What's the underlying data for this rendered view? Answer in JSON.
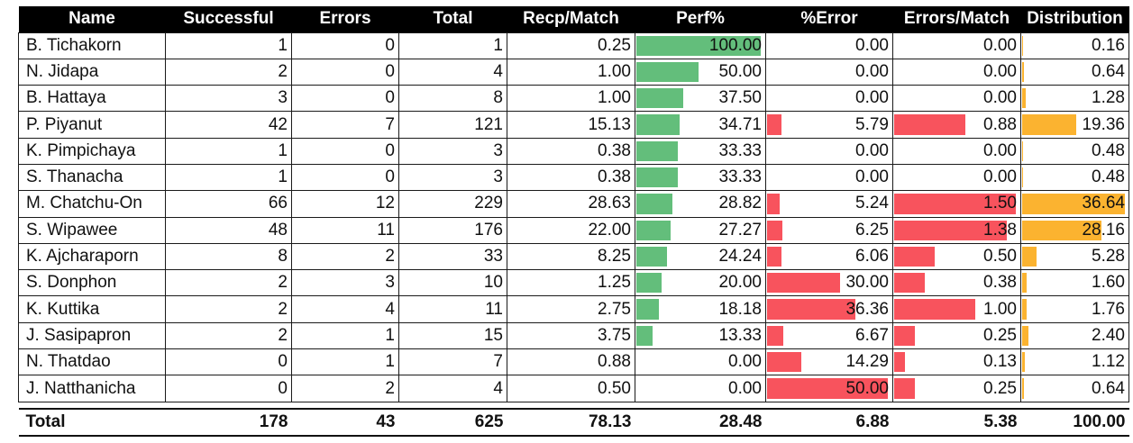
{
  "table": {
    "headers": [
      "Name",
      "Successful",
      "Errors",
      "Total",
      "Recp/Match",
      "Perf%",
      "%Error",
      "Errors/Match",
      "Distribution"
    ],
    "bar_colors": {
      "perf": "#63be7b",
      "error": "#f8535d",
      "distribution": "#fbb330"
    },
    "rows": [
      [
        "B. Tichakorn",
        "1",
        "0",
        "1",
        "0.25",
        "100.00",
        "0.00",
        "0.00",
        "0.16"
      ],
      [
        "N. Jidapa",
        "2",
        "0",
        "4",
        "1.00",
        "50.00",
        "0.00",
        "0.00",
        "0.64"
      ],
      [
        "B. Hattaya",
        "3",
        "0",
        "8",
        "1.00",
        "37.50",
        "0.00",
        "0.00",
        "1.28"
      ],
      [
        "P. Piyanut",
        "42",
        "7",
        "121",
        "15.13",
        "34.71",
        "5.79",
        "0.88",
        "19.36"
      ],
      [
        "K. Pimpichaya",
        "1",
        "0",
        "3",
        "0.38",
        "33.33",
        "0.00",
        "0.00",
        "0.48"
      ],
      [
        "S. Thanacha",
        "1",
        "0",
        "3",
        "0.38",
        "33.33",
        "0.00",
        "0.00",
        "0.48"
      ],
      [
        "M. Chatchu-On",
        "66",
        "12",
        "229",
        "28.63",
        "28.82",
        "5.24",
        "1.50",
        "36.64"
      ],
      [
        "S. Wipawee",
        "48",
        "11",
        "176",
        "22.00",
        "27.27",
        "6.25",
        "1.38",
        "28.16"
      ],
      [
        "K. Ajcharaporn",
        "8",
        "2",
        "33",
        "8.25",
        "24.24",
        "6.06",
        "0.50",
        "5.28"
      ],
      [
        "S. Donphon",
        "2",
        "3",
        "10",
        "1.25",
        "20.00",
        "30.00",
        "0.38",
        "1.60"
      ],
      [
        "K. Kuttika",
        "2",
        "4",
        "11",
        "2.75",
        "18.18",
        "36.36",
        "1.00",
        "1.76"
      ],
      [
        "J. Sasipapron",
        "2",
        "1",
        "15",
        "3.75",
        "13.33",
        "6.67",
        "0.25",
        "2.40"
      ],
      [
        "N. Thatdao",
        "0",
        "1",
        "7",
        "0.88",
        "0.00",
        "14.29",
        "0.13",
        "1.12"
      ],
      [
        "J. Natthanicha",
        "0",
        "2",
        "4",
        "0.50",
        "0.00",
        "50.00",
        "0.25",
        "0.64"
      ]
    ],
    "total": [
      "Total",
      "178",
      "43",
      "625",
      "78.13",
      "28.48",
      "6.88",
      "5.38",
      "100.00"
    ]
  }
}
